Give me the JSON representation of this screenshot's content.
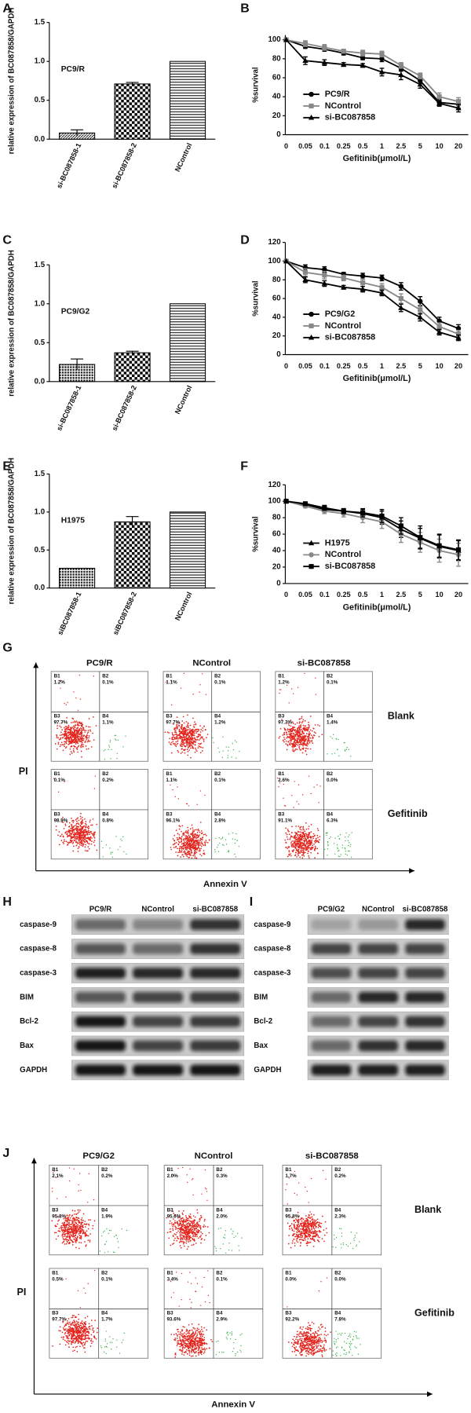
{
  "chart_data": [
    {
      "type": "bar",
      "panel": "A",
      "y_label": "relative expression of BC087858/GAPDH",
      "annotation": "PC9/R",
      "categories": [
        "si-BC087858-1",
        "si-BC087858-2",
        "NControl"
      ],
      "values": [
        0.08,
        0.71,
        1.0
      ],
      "errors": [
        0.04,
        0.02,
        null
      ],
      "fills": [
        "hatch",
        "check",
        "hlines"
      ],
      "color": "#000",
      "ylim": [
        0,
        1.5
      ],
      "yticks": [
        {
          "value": 0,
          "label": "0.0"
        },
        {
          "value": 0.5,
          "label": "0.5"
        },
        {
          "value": 1,
          "label": "1.0"
        },
        {
          "value": 1.5,
          "label": "1.5"
        }
      ]
    },
    {
      "type": "line",
      "panel": "B",
      "y_label": "%survival",
      "x_label": "Gefitinib(μmol/L)",
      "categories": [
        "0",
        "0.05",
        "0.1",
        "0.25",
        "0.5",
        "1",
        "2.5",
        "5",
        "10",
        "20"
      ],
      "series": [
        {
          "name": "PC9/R",
          "color": "#000",
          "marker": "circle",
          "values": [
            100,
            93,
            90,
            86,
            81,
            80,
            70,
            57,
            34,
            32
          ],
          "errors": [
            null,
            2,
            2,
            2,
            2,
            3,
            3,
            3,
            3,
            4
          ]
        },
        {
          "name": "NControl",
          "color": "#888",
          "marker": "square",
          "values": [
            100,
            96,
            92,
            88,
            86,
            85,
            73,
            62,
            40,
            35
          ],
          "errors": [
            null,
            3,
            3,
            2,
            3,
            3,
            3,
            3,
            4,
            4
          ]
        },
        {
          "name": "si-BC087858",
          "color": "#000",
          "marker": "triangle",
          "values": [
            100,
            78,
            76,
            74,
            73,
            66,
            63,
            53,
            33,
            28
          ],
          "errors": [
            null,
            4,
            3,
            2,
            2,
            4,
            5,
            4,
            3,
            4
          ]
        }
      ],
      "ylim": [
        0,
        105
      ],
      "yticks": [
        0,
        20,
        40,
        60,
        80,
        100
      ],
      "legend": "lower-left"
    },
    {
      "type": "bar",
      "panel": "C",
      "y_label": "relative expression of BC087858/GAPDH",
      "annotation": "PC9/G2",
      "categories": [
        "si-BC087858-1",
        "si-BC087858-2",
        "NControl"
      ],
      "values": [
        0.22,
        0.37,
        1.0
      ],
      "errors": [
        0.07,
        0.02,
        null
      ],
      "fills": [
        "dots",
        "check",
        "hlines"
      ],
      "color": "#000",
      "ylim": [
        0,
        1.5
      ],
      "yticks": [
        {
          "value": 0,
          "label": "0.0"
        },
        {
          "value": 0.5,
          "label": "0.5"
        },
        {
          "value": 1,
          "label": "1.0"
        },
        {
          "value": 1.5,
          "label": "1.5"
        }
      ]
    },
    {
      "type": "line",
      "panel": "D",
      "y_label": "%survival",
      "x_label": "Gefitinib(μmol/L)",
      "categories": [
        "0",
        "0.05",
        "0.1",
        "0.25",
        "0.5",
        "1",
        "2.5",
        "5",
        "10",
        "20"
      ],
      "series": [
        {
          "name": "PC9/G2",
          "color": "#000",
          "marker": "circle",
          "values": [
            100,
            93,
            91,
            86,
            84,
            82,
            73,
            57,
            36,
            28
          ],
          "errors": [
            null,
            3,
            3,
            2,
            3,
            3,
            4,
            5,
            4,
            4
          ]
        },
        {
          "name": "NControl",
          "color": "#888",
          "marker": "square",
          "values": [
            100,
            88,
            85,
            82,
            77,
            72,
            60,
            48,
            30,
            22
          ],
          "errors": [
            null,
            4,
            4,
            3,
            4,
            4,
            5,
            5,
            4,
            4
          ]
        },
        {
          "name": "si-BC087858",
          "color": "#000",
          "marker": "triangle",
          "values": [
            100,
            80,
            76,
            72,
            70,
            66,
            50,
            40,
            24,
            18
          ],
          "errors": [
            null,
            3,
            3,
            2,
            3,
            3,
            4,
            4,
            3,
            3
          ]
        }
      ],
      "ylim": [
        0,
        120
      ],
      "yticks": [
        0,
        20,
        40,
        60,
        80,
        100,
        120
      ],
      "legend": "lower-left"
    },
    {
      "type": "bar",
      "panel": "E",
      "y_label": "relative expression of BC087858/GAPDH",
      "annotation": "H1975",
      "categories": [
        "siBC087858-1",
        "siBC087858-2",
        "NControl"
      ],
      "values": [
        0.26,
        0.87,
        1.0
      ],
      "errors": [
        null,
        0.07,
        null
      ],
      "fills": [
        "dots",
        "check",
        "hlines"
      ],
      "color": "#000",
      "ylim": [
        0,
        1.5
      ],
      "yticks": [
        {
          "value": 0,
          "label": "0.0"
        },
        {
          "value": 0.5,
          "label": "0.5"
        },
        {
          "value": 1,
          "label": "1.0"
        },
        {
          "value": 1.5,
          "label": "1.5"
        }
      ]
    },
    {
      "type": "line",
      "panel": "F",
      "y_label": "%survival",
      "x_label": "Gefitinib(μmol/L)",
      "categories": [
        "0",
        "0.05",
        "0.1",
        "0.25",
        "0.5",
        "1",
        "2.5",
        "5",
        "10",
        "20"
      ],
      "series": [
        {
          "name": "H1975",
          "color": "#000",
          "marker": "triangle",
          "values": [
            100,
            96,
            90,
            88,
            85,
            80,
            66,
            55,
            45,
            40
          ],
          "errors": [
            null,
            2,
            3,
            3,
            5,
            8,
            10,
            12,
            14,
            12
          ]
        },
        {
          "name": "NControl",
          "color": "#888",
          "marker": "circle",
          "values": [
            100,
            94,
            88,
            85,
            80,
            75,
            60,
            50,
            40,
            35
          ],
          "errors": [
            null,
            2,
            3,
            4,
            6,
            8,
            10,
            12,
            14,
            14
          ]
        },
        {
          "name": "si-BC087858",
          "color": "#000",
          "marker": "square",
          "values": [
            100,
            97,
            92,
            88,
            86,
            82,
            70,
            56,
            46,
            41
          ],
          "errors": [
            null,
            2,
            3,
            3,
            5,
            8,
            10,
            14,
            14,
            12
          ]
        }
      ],
      "ylim": [
        0,
        120
      ],
      "yticks": [
        0,
        20,
        40,
        60,
        80,
        100,
        120
      ],
      "legend": "lower-left"
    }
  ],
  "flow_panels": [
    {
      "panel": "G",
      "columns": [
        "PC9/R",
        "NControl",
        "si-BC087858"
      ],
      "rows": [
        "Blank",
        "Gefitinib"
      ],
      "y_label": "PI",
      "x_label": "Annexin V",
      "quadrant_names": [
        "B1",
        "B2",
        "B3",
        "B4"
      ],
      "plots": [
        [
          [
            "1.2%",
            "0.1%",
            "97.7%",
            "1.1%"
          ],
          [
            "1.1%",
            "0.1%",
            "97.7%",
            "1.2%"
          ],
          [
            "1.2%",
            "0.1%",
            "97.3%",
            "1.4%"
          ]
        ],
        [
          [
            "0.1%",
            "0.2%",
            "98.9%",
            "0.8%"
          ],
          [
            "1.1%",
            "0.1%",
            "96.1%",
            "2.8%"
          ],
          [
            "2.6%",
            "0.0%",
            "91.1%",
            "6.3%"
          ]
        ]
      ]
    },
    {
      "panel": "J",
      "columns": [
        "PC9/G2",
        "NControl",
        "si-BC087858"
      ],
      "rows": [
        "Blank",
        "Gefitinib"
      ],
      "y_label": "PI",
      "x_label": "Annexin V",
      "quadrant_names": [
        "B1",
        "B2",
        "B3",
        "B4"
      ],
      "plots": [
        [
          [
            "2.1%",
            "0.2%",
            "95.8%",
            "1.9%"
          ],
          [
            "2.0%",
            "0.3%",
            "95.6%",
            "2.0%"
          ],
          [
            "1.7%",
            "0.2%",
            "95.8%",
            "2.3%"
          ]
        ],
        [
          [
            "0.5%",
            "0.1%",
            "97.7%",
            "1.7%"
          ],
          [
            "3.4%",
            "0.1%",
            "93.6%",
            "2.9%"
          ],
          [
            "0.0%",
            "0.0%",
            "92.2%",
            "7.8%"
          ]
        ]
      ]
    }
  ],
  "blots": [
    {
      "panel": "H",
      "columns": [
        "PC9/R",
        "NControl",
        "si-BC087858"
      ],
      "rows": [
        "caspase-9",
        "caspase-8",
        "caspase-3",
        "BIM",
        "Bcl-2",
        "Bax",
        "GAPDH"
      ]
    },
    {
      "panel": "I",
      "columns": [
        "PC9/G2",
        "NControl",
        "si-BC087858"
      ],
      "rows": [
        "caspase-9",
        "caspase-8",
        "caspase-3",
        "BIM",
        "Bcl-2",
        "Bax",
        "GAPDH"
      ]
    }
  ]
}
